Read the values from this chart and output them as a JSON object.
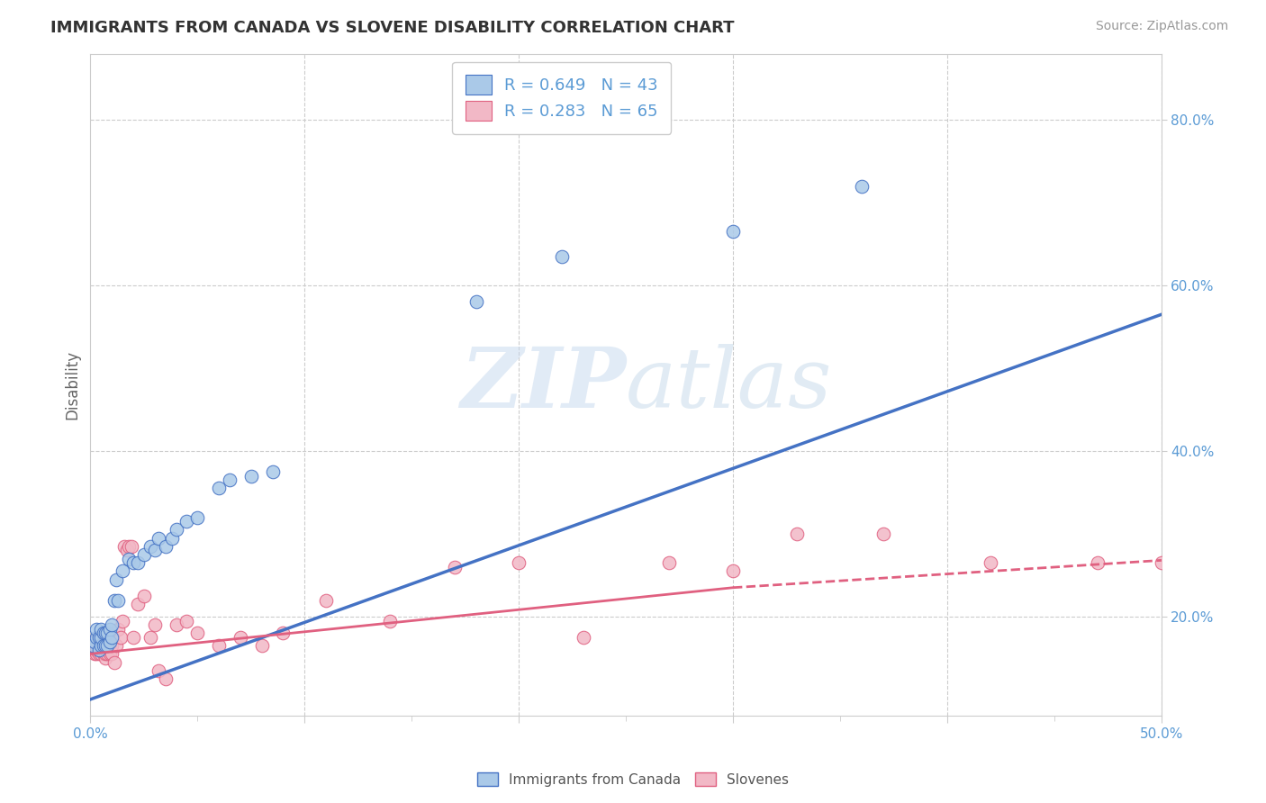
{
  "title": "IMMIGRANTS FROM CANADA VS SLOVENE DISABILITY CORRELATION CHART",
  "source": "Source: ZipAtlas.com",
  "ylabel": "Disability",
  "xlim": [
    0.0,
    0.5
  ],
  "ylim": [
    0.08,
    0.88
  ],
  "xticks": [
    0.0,
    0.1,
    0.2,
    0.3,
    0.4,
    0.5
  ],
  "xtick_labels": [
    "0.0%",
    "",
    "",
    "",
    "",
    "50.0%"
  ],
  "ytick_right": [
    0.2,
    0.4,
    0.6,
    0.8
  ],
  "ytick_right_labels": [
    "20.0%",
    "40.0%",
    "60.0%",
    "80.0%"
  ],
  "minor_xticks": [
    0.05,
    0.15,
    0.25,
    0.35,
    0.45
  ],
  "grid_yticks": [
    0.2,
    0.4,
    0.6,
    0.8
  ],
  "grid_xticks": [
    0.1,
    0.2,
    0.3,
    0.4,
    0.5
  ],
  "grid_color": "#cccccc",
  "background_color": "#ffffff",
  "watermark_zip": "ZIP",
  "watermark_atlas": "atlas",
  "legend_r1": "R = 0.649",
  "legend_n1": "N = 43",
  "legend_r2": "R = 0.283",
  "legend_n2": "N = 65",
  "color_blue": "#aac9e8",
  "color_pink": "#f2b8c6",
  "color_blue_line": "#4472c4",
  "color_pink_line": "#e06080",
  "trendline_blue_x0": 0.0,
  "trendline_blue_y0": 0.1,
  "trendline_blue_x1": 0.5,
  "trendline_blue_y1": 0.565,
  "trendline_pink_solid_x0": 0.0,
  "trendline_pink_solid_y0": 0.155,
  "trendline_pink_solid_x1": 0.3,
  "trendline_pink_solid_y1": 0.235,
  "trendline_pink_dash_x0": 0.3,
  "trendline_pink_dash_y0": 0.235,
  "trendline_pink_dash_x1": 0.5,
  "trendline_pink_dash_y1": 0.268,
  "blue_x": [
    0.001,
    0.002,
    0.003,
    0.003,
    0.004,
    0.004,
    0.005,
    0.005,
    0.005,
    0.006,
    0.006,
    0.007,
    0.007,
    0.008,
    0.008,
    0.009,
    0.009,
    0.01,
    0.01,
    0.011,
    0.012,
    0.013,
    0.015,
    0.018,
    0.02,
    0.022,
    0.025,
    0.028,
    0.03,
    0.032,
    0.035,
    0.038,
    0.04,
    0.045,
    0.05,
    0.06,
    0.065,
    0.075,
    0.085,
    0.18,
    0.22,
    0.3,
    0.36
  ],
  "blue_y": [
    0.165,
    0.17,
    0.175,
    0.185,
    0.16,
    0.175,
    0.165,
    0.175,
    0.185,
    0.165,
    0.18,
    0.165,
    0.18,
    0.165,
    0.18,
    0.17,
    0.185,
    0.175,
    0.19,
    0.22,
    0.245,
    0.22,
    0.255,
    0.27,
    0.265,
    0.265,
    0.275,
    0.285,
    0.28,
    0.295,
    0.285,
    0.295,
    0.305,
    0.315,
    0.32,
    0.355,
    0.365,
    0.37,
    0.375,
    0.58,
    0.635,
    0.665,
    0.72
  ],
  "pink_x": [
    0.001,
    0.001,
    0.002,
    0.002,
    0.003,
    0.003,
    0.003,
    0.004,
    0.004,
    0.004,
    0.005,
    0.005,
    0.005,
    0.005,
    0.006,
    0.006,
    0.006,
    0.007,
    0.007,
    0.007,
    0.007,
    0.008,
    0.008,
    0.008,
    0.009,
    0.009,
    0.009,
    0.01,
    0.01,
    0.01,
    0.011,
    0.012,
    0.013,
    0.014,
    0.015,
    0.016,
    0.017,
    0.018,
    0.019,
    0.02,
    0.022,
    0.025,
    0.028,
    0.03,
    0.032,
    0.035,
    0.04,
    0.045,
    0.05,
    0.06,
    0.07,
    0.08,
    0.09,
    0.11,
    0.14,
    0.17,
    0.2,
    0.23,
    0.27,
    0.3,
    0.33,
    0.37,
    0.42,
    0.47,
    0.5
  ],
  "pink_y": [
    0.16,
    0.17,
    0.155,
    0.165,
    0.155,
    0.16,
    0.17,
    0.155,
    0.165,
    0.175,
    0.155,
    0.16,
    0.165,
    0.175,
    0.155,
    0.16,
    0.17,
    0.15,
    0.155,
    0.165,
    0.175,
    0.155,
    0.16,
    0.175,
    0.155,
    0.165,
    0.175,
    0.155,
    0.165,
    0.175,
    0.145,
    0.165,
    0.185,
    0.175,
    0.195,
    0.285,
    0.28,
    0.285,
    0.285,
    0.175,
    0.215,
    0.225,
    0.175,
    0.19,
    0.135,
    0.125,
    0.19,
    0.195,
    0.18,
    0.165,
    0.175,
    0.165,
    0.18,
    0.22,
    0.195,
    0.26,
    0.265,
    0.175,
    0.265,
    0.255,
    0.3,
    0.3,
    0.265,
    0.265,
    0.265
  ]
}
